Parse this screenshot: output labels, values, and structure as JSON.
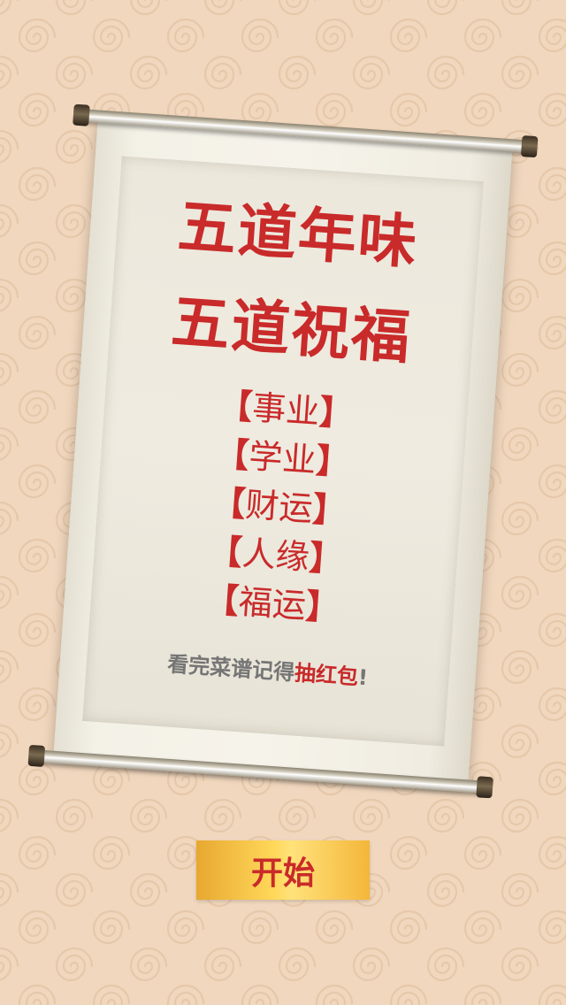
{
  "colors": {
    "background": "#f1d7bd",
    "accent_red": "#c92a2a",
    "tagline_gray": "#757575",
    "button_gold": "#ffd85a"
  },
  "scroll": {
    "title_line_1": "五道年味",
    "title_line_2": "五道祝福",
    "blessings": [
      {
        "open": "【",
        "text": "事业",
        "close": "】"
      },
      {
        "open": "【",
        "text": "学业",
        "close": "】"
      },
      {
        "open": "【",
        "text": "财运",
        "close": "】"
      },
      {
        "open": "【",
        "text": "人缘",
        "close": "】"
      },
      {
        "open": "【",
        "text": "福运",
        "close": "】"
      }
    ],
    "tagline_prefix": "看完菜谱记得",
    "tagline_highlight": "抽红包",
    "tagline_suffix": "!"
  },
  "start_button": {
    "label": "开始"
  }
}
